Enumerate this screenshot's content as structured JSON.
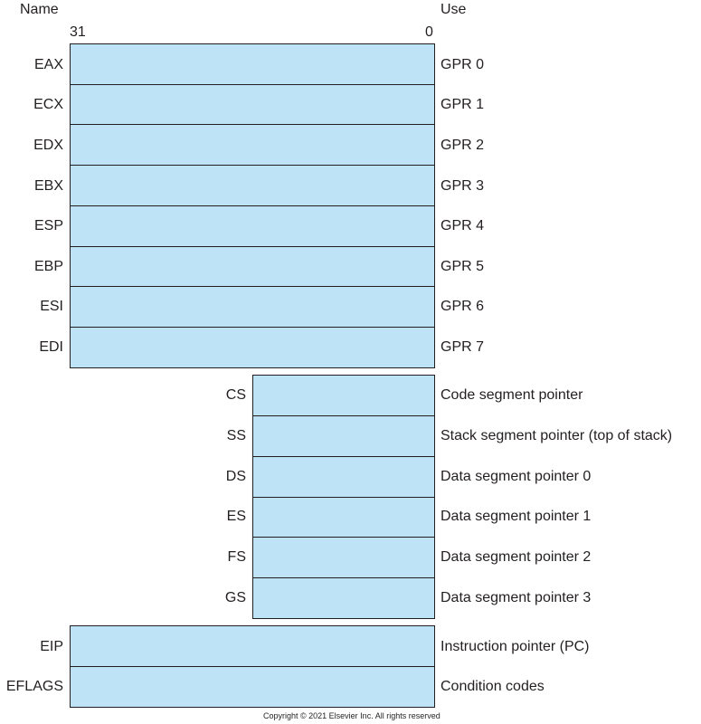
{
  "header": {
    "name_label": "Name",
    "use_label": "Use",
    "bit_high": "31",
    "bit_low": "0"
  },
  "gprs": [
    {
      "name": "EAX",
      "use": "GPR 0"
    },
    {
      "name": "ECX",
      "use": "GPR 1"
    },
    {
      "name": "EDX",
      "use": "GPR 2"
    },
    {
      "name": "EBX",
      "use": "GPR 3"
    },
    {
      "name": "ESP",
      "use": "GPR 4"
    },
    {
      "name": "EBP",
      "use": "GPR 5"
    },
    {
      "name": "ESI",
      "use": "GPR 6"
    },
    {
      "name": "EDI",
      "use": "GPR 7"
    }
  ],
  "segments": [
    {
      "name": "CS",
      "use": "Code segment pointer"
    },
    {
      "name": "SS",
      "use": "Stack segment pointer (top of stack)"
    },
    {
      "name": "DS",
      "use": "Data segment pointer 0"
    },
    {
      "name": "ES",
      "use": "Data segment pointer 1"
    },
    {
      "name": "FS",
      "use": "Data segment pointer 2"
    },
    {
      "name": "GS",
      "use": "Data segment pointer 3"
    }
  ],
  "special": [
    {
      "name": "EIP",
      "use": "Instruction pointer (PC)"
    },
    {
      "name": "EFLAGS",
      "use": "Condition codes"
    }
  ],
  "copyright": "Copyright © 2021 Elsevier Inc. All rights reserved",
  "colors": {
    "register_fill": "#bee3f7",
    "outline": "#231f20"
  }
}
